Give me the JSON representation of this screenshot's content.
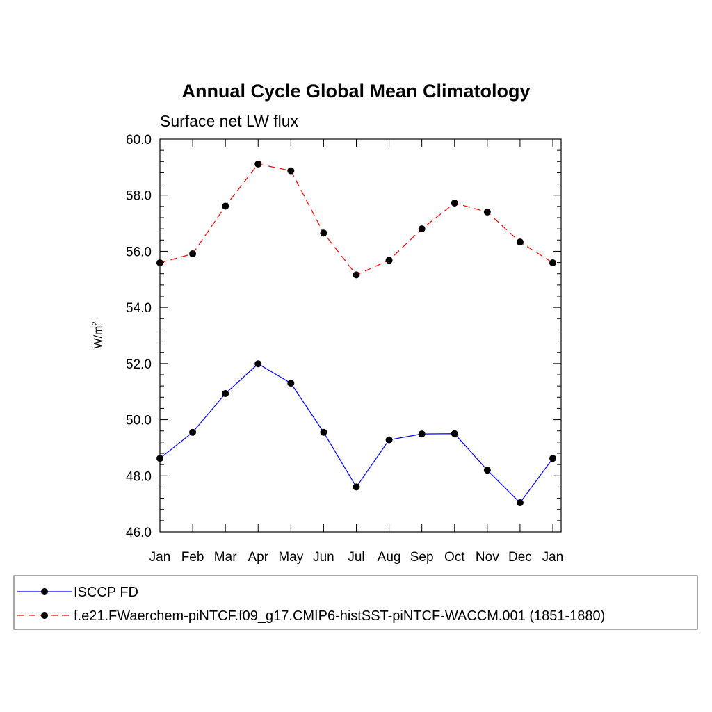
{
  "chart_data": {
    "type": "line",
    "title": "Annual Cycle Global Mean Climatology",
    "subtitle": "Surface net LW flux",
    "ylabel_base": "W/m",
    "ylabel_sup": "2",
    "xlabel": "",
    "categories": [
      "Jan",
      "Feb",
      "Mar",
      "Apr",
      "May",
      "Jun",
      "Jul",
      "Aug",
      "Sep",
      "Oct",
      "Nov",
      "Dec",
      "Jan"
    ],
    "ylim": [
      46.0,
      60.0
    ],
    "yticks": [
      "46.0",
      "48.0",
      "50.0",
      "52.0",
      "54.0",
      "56.0",
      "58.0",
      "60.0"
    ],
    "grid": false,
    "legend_position": "bottom",
    "series": [
      {
        "name": "ISCCP FD",
        "color": "#0000ff",
        "dash": "solid",
        "values": [
          48.62,
          49.55,
          50.93,
          51.99,
          51.3,
          49.55,
          47.6,
          49.28,
          49.49,
          49.5,
          48.2,
          47.04,
          48.62
        ]
      },
      {
        "name": "f.e21.FWaerchem-piNTCF.f09_g17.CMIP6-histSST-piNTCF-WACCM.001 (1851-1880)",
        "color": "#ff0000",
        "dash": "dashed",
        "values": [
          55.59,
          55.91,
          57.61,
          59.11,
          58.87,
          56.65,
          55.16,
          55.68,
          56.8,
          57.72,
          57.4,
          56.33,
          55.59
        ]
      }
    ]
  }
}
